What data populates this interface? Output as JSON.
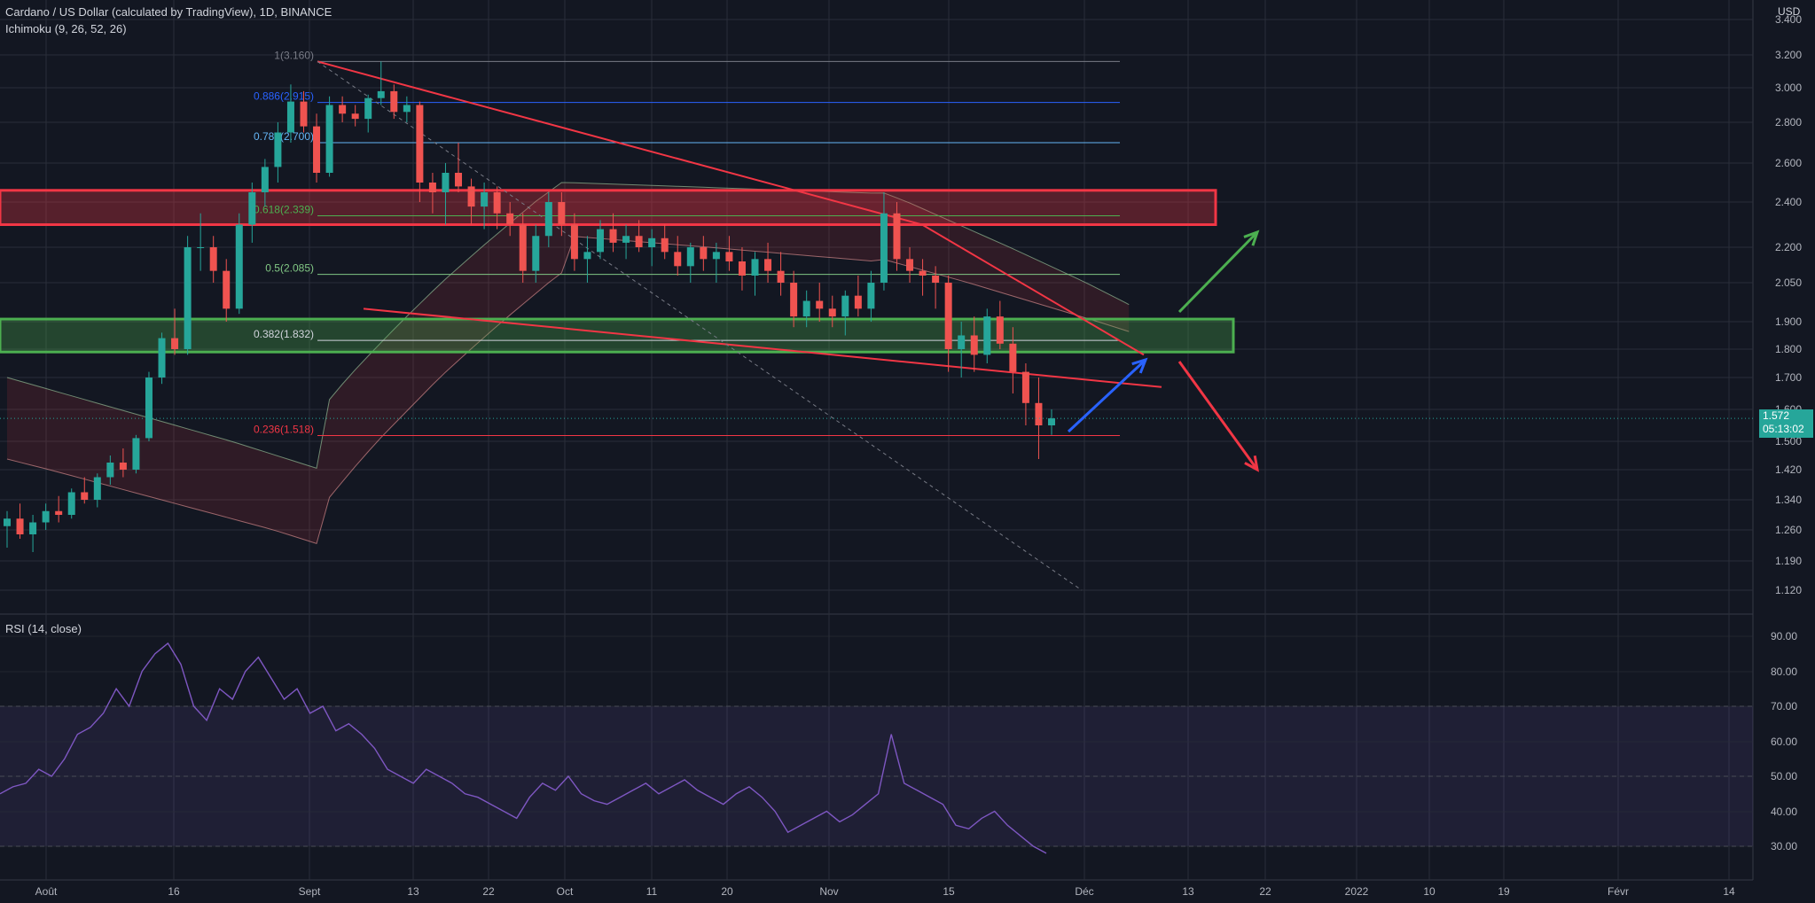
{
  "header": {
    "symbol_title": "Cardano / US Dollar (calculated by TradingView), 1D, BINANCE",
    "indicator": "Ichimoku (9, 26, 52, 26)",
    "currency": "USD"
  },
  "rsi_panel": {
    "title": "RSI (14, close)"
  },
  "price_tag": {
    "price": "1.572",
    "countdown": "05:13:02"
  },
  "colors": {
    "background": "#131722",
    "grid": "#2a2e39",
    "up": "#26a69a",
    "down": "#ef5350",
    "resistance_zone": "#f23645",
    "support_zone": "#4caf50",
    "rsi_line": "#7e57c2",
    "arrow_up_green": "#4caf50",
    "arrow_up_blue": "#2962ff",
    "arrow_down_red": "#f23645"
  },
  "chart_data": {
    "type": "candlestick",
    "x_axis_labels": [
      "Août",
      "16",
      "Sept",
      "13",
      "22",
      "Oct",
      "11",
      "20",
      "Nov",
      "15",
      "Déc",
      "13",
      "22",
      "2022",
      "10",
      "19",
      "Févr",
      "14"
    ],
    "price_axis_labels": [
      "3.400",
      "3.200",
      "3.000",
      "2.800",
      "2.600",
      "2.400",
      "2.200",
      "2.050",
      "1.900",
      "1.800",
      "1.700",
      "1.600",
      "1.500",
      "1.420",
      "1.340",
      "1.260",
      "1.190",
      "1.120"
    ],
    "rsi_axis_labels": [
      "90.00",
      "80.00",
      "70.00",
      "60.00",
      "50.00",
      "40.00",
      "30.00"
    ],
    "fib_levels": [
      {
        "label": "1(3.160)",
        "value": 3.16,
        "color": "#787b86"
      },
      {
        "label": "0.886(2.915)",
        "value": 2.915,
        "color": "#2962ff"
      },
      {
        "label": "0.786(2.700)",
        "value": 2.7,
        "color": "#64b5f6"
      },
      {
        "label": "0.618(2.339)",
        "value": 2.339,
        "color": "#4caf50"
      },
      {
        "label": "0.5(2.085)",
        "value": 2.085,
        "color": "#81c784"
      },
      {
        "label": "0.382(1.832)",
        "value": 1.832,
        "color": "#d1d4dc"
      },
      {
        "label": "0.236(1.518)",
        "value": 1.518,
        "color": "#f23645"
      }
    ],
    "last_price": 1.572,
    "candles_ohlc_approx": [
      [
        1.27,
        1.31,
        1.22,
        1.29
      ],
      [
        1.29,
        1.33,
        1.24,
        1.25
      ],
      [
        1.25,
        1.3,
        1.21,
        1.28
      ],
      [
        1.28,
        1.33,
        1.26,
        1.31
      ],
      [
        1.31,
        1.35,
        1.28,
        1.3
      ],
      [
        1.3,
        1.37,
        1.29,
        1.36
      ],
      [
        1.36,
        1.4,
        1.33,
        1.34
      ],
      [
        1.34,
        1.41,
        1.32,
        1.4
      ],
      [
        1.4,
        1.46,
        1.38,
        1.44
      ],
      [
        1.44,
        1.48,
        1.4,
        1.42
      ],
      [
        1.42,
        1.52,
        1.41,
        1.51
      ],
      [
        1.51,
        1.72,
        1.5,
        1.7
      ],
      [
        1.7,
        1.86,
        1.68,
        1.84
      ],
      [
        1.84,
        1.95,
        1.78,
        1.8
      ],
      [
        1.8,
        2.25,
        1.78,
        2.2
      ],
      [
        2.2,
        2.35,
        2.1,
        2.2
      ],
      [
        2.2,
        2.25,
        2.05,
        2.1
      ],
      [
        2.1,
        2.15,
        1.9,
        1.95
      ],
      [
        1.95,
        2.35,
        1.93,
        2.3
      ],
      [
        2.3,
        2.5,
        2.22,
        2.45
      ],
      [
        2.45,
        2.62,
        2.38,
        2.58
      ],
      [
        2.58,
        2.8,
        2.5,
        2.75
      ],
      [
        2.75,
        3.02,
        2.7,
        2.92
      ],
      [
        2.92,
        2.98,
        2.75,
        2.78
      ],
      [
        2.78,
        2.85,
        2.5,
        2.55
      ],
      [
        2.55,
        2.95,
        2.53,
        2.9
      ],
      [
        2.9,
        2.95,
        2.8,
        2.85
      ],
      [
        2.85,
        2.9,
        2.78,
        2.82
      ],
      [
        2.82,
        2.96,
        2.75,
        2.94
      ],
      [
        2.94,
        3.16,
        2.9,
        2.98
      ],
      [
        2.98,
        3.02,
        2.82,
        2.86
      ],
      [
        2.86,
        2.95,
        2.8,
        2.9
      ],
      [
        2.9,
        2.92,
        2.4,
        2.5
      ],
      [
        2.5,
        2.55,
        2.35,
        2.45
      ],
      [
        2.45,
        2.6,
        2.3,
        2.55
      ],
      [
        2.55,
        2.7,
        2.45,
        2.48
      ],
      [
        2.48,
        2.52,
        2.3,
        2.38
      ],
      [
        2.38,
        2.5,
        2.28,
        2.45
      ],
      [
        2.45,
        2.48,
        2.28,
        2.35
      ],
      [
        2.35,
        2.4,
        2.25,
        2.3
      ],
      [
        2.3,
        2.35,
        2.05,
        2.1
      ],
      [
        2.1,
        2.3,
        2.05,
        2.25
      ],
      [
        2.25,
        2.45,
        2.2,
        2.4
      ],
      [
        2.4,
        2.45,
        2.25,
        2.3
      ],
      [
        2.3,
        2.35,
        2.1,
        2.15
      ],
      [
        2.15,
        2.25,
        2.05,
        2.18
      ],
      [
        2.18,
        2.32,
        2.15,
        2.28
      ],
      [
        2.28,
        2.35,
        2.18,
        2.22
      ],
      [
        2.22,
        2.3,
        2.15,
        2.25
      ],
      [
        2.25,
        2.32,
        2.18,
        2.2
      ],
      [
        2.2,
        2.28,
        2.12,
        2.24
      ],
      [
        2.24,
        2.3,
        2.15,
        2.18
      ],
      [
        2.18,
        2.25,
        2.08,
        2.12
      ],
      [
        2.12,
        2.22,
        2.05,
        2.2
      ],
      [
        2.2,
        2.25,
        2.1,
        2.15
      ],
      [
        2.15,
        2.22,
        2.05,
        2.18
      ],
      [
        2.18,
        2.25,
        2.1,
        2.14
      ],
      [
        2.14,
        2.2,
        2.02,
        2.08
      ],
      [
        2.08,
        2.18,
        2.0,
        2.15
      ],
      [
        2.15,
        2.22,
        2.05,
        2.1
      ],
      [
        2.1,
        2.18,
        2.0,
        2.05
      ],
      [
        2.05,
        2.1,
        1.88,
        1.92
      ],
      [
        1.92,
        2.02,
        1.88,
        1.98
      ],
      [
        1.98,
        2.05,
        1.9,
        1.95
      ],
      [
        1.95,
        2.0,
        1.88,
        1.92
      ],
      [
        1.92,
        2.02,
        1.85,
        2.0
      ],
      [
        2.0,
        2.08,
        1.92,
        1.95
      ],
      [
        1.95,
        2.1,
        1.9,
        2.05
      ],
      [
        2.05,
        2.45,
        2.02,
        2.35
      ],
      [
        2.35,
        2.4,
        2.1,
        2.15
      ],
      [
        2.15,
        2.2,
        2.05,
        2.1
      ],
      [
        2.1,
        2.15,
        2.0,
        2.08
      ],
      [
        2.08,
        2.12,
        1.95,
        2.05
      ],
      [
        2.05,
        2.08,
        1.72,
        1.8
      ],
      [
        1.8,
        1.9,
        1.7,
        1.85
      ],
      [
        1.85,
        1.92,
        1.72,
        1.78
      ],
      [
        1.78,
        1.95,
        1.75,
        1.92
      ],
      [
        1.92,
        1.98,
        1.8,
        1.82
      ],
      [
        1.82,
        1.88,
        1.65,
        1.72
      ],
      [
        1.72,
        1.75,
        1.55,
        1.62
      ],
      [
        1.62,
        1.7,
        1.45,
        1.55
      ],
      [
        1.55,
        1.6,
        1.52,
        1.572
      ]
    ],
    "rsi_values_approx": [
      45,
      47,
      48,
      52,
      50,
      55,
      62,
      64,
      68,
      75,
      70,
      80,
      85,
      88,
      82,
      70,
      66,
      75,
      72,
      80,
      84,
      78,
      72,
      75,
      68,
      70,
      63,
      65,
      62,
      58,
      52,
      50,
      48,
      52,
      50,
      48,
      45,
      44,
      42,
      40,
      38,
      44,
      48,
      46,
      50,
      45,
      43,
      42,
      44,
      46,
      48,
      45,
      47,
      49,
      46,
      44,
      42,
      45,
      47,
      44,
      40,
      34,
      36,
      38,
      40,
      37,
      39,
      42,
      45,
      62,
      48,
      46,
      44,
      42,
      36,
      35,
      38,
      40,
      36,
      33,
      30,
      28
    ]
  }
}
